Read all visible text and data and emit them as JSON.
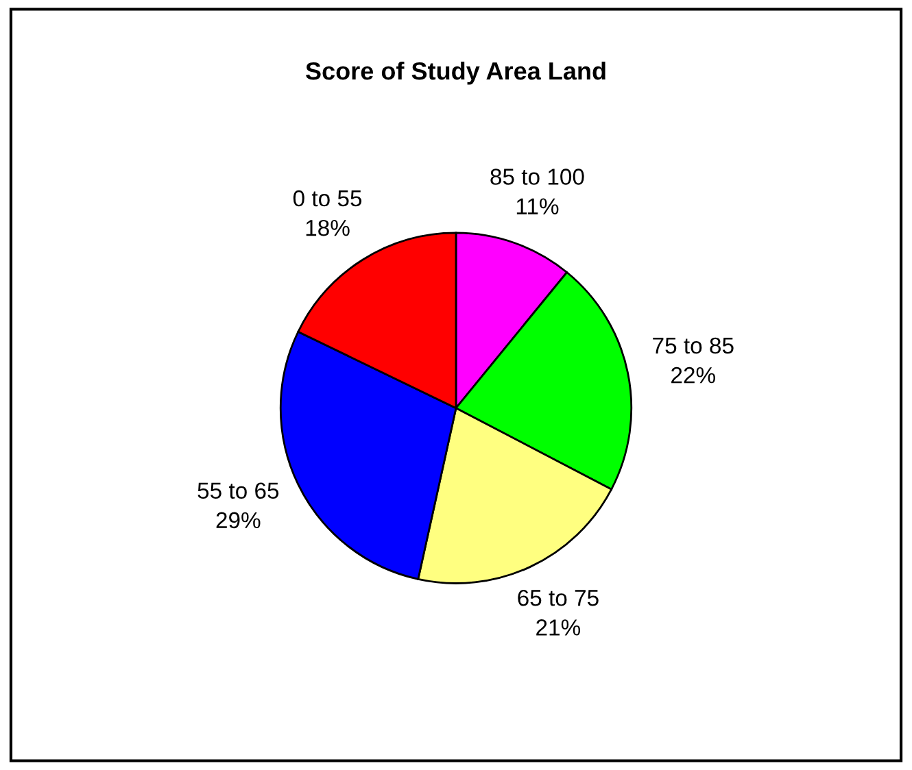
{
  "chart_data": {
    "type": "pie",
    "title": "Score of Study Area Land",
    "categories": [
      "85 to 100",
      "75 to 85",
      "65 to 75",
      "55 to 65",
      "0 to 55"
    ],
    "values": [
      11,
      22,
      21,
      29,
      18
    ],
    "value_labels": [
      "11%",
      "22%",
      "21%",
      "29%",
      "18%"
    ],
    "colors": [
      "#ff00ff",
      "#00ff00",
      "#ffff80",
      "#0000ff",
      "#ff0000"
    ],
    "legend": false
  }
}
